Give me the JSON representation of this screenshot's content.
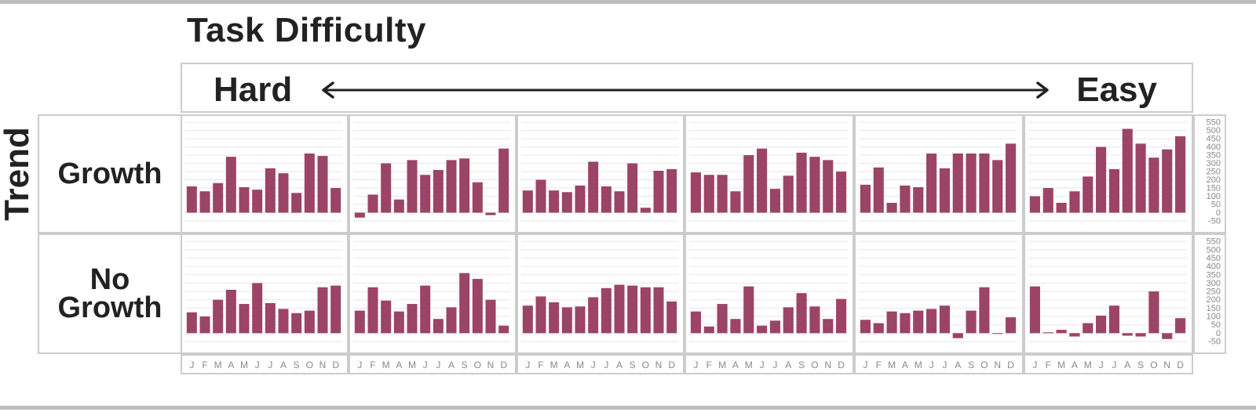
{
  "title": "Task Difficulty",
  "y_title": "Trend",
  "difficulty": {
    "left_label": "Hard",
    "right_label": "Easy"
  },
  "rows": [
    {
      "label_lines": [
        "Growth"
      ]
    },
    {
      "label_lines": [
        "No",
        "Growth"
      ]
    }
  ],
  "colors": {
    "bar": "#9c4466",
    "border": "#cccccc",
    "grid": "#e6e6e6",
    "axis_text": "#888888"
  },
  "chart_data": {
    "type": "bar",
    "categories": [
      "J",
      "F",
      "M",
      "A",
      "M",
      "J",
      "J",
      "A",
      "S",
      "O",
      "N",
      "D"
    ],
    "y_ticks": [
      -50,
      0,
      50,
      100,
      150,
      200,
      250,
      300,
      350,
      400,
      450,
      500,
      550
    ],
    "ylim": [
      -50,
      560
    ],
    "grid": true,
    "panels": [
      [
        {
          "values": [
            160,
            130,
            180,
            340,
            155,
            140,
            270,
            240,
            120,
            360,
            345,
            150
          ]
        },
        {
          "values": [
            -30,
            110,
            300,
            80,
            320,
            230,
            260,
            320,
            330,
            185,
            -15,
            390
          ]
        },
        {
          "values": [
            135,
            200,
            135,
            125,
            165,
            310,
            160,
            130,
            300,
            30,
            255,
            265
          ]
        },
        {
          "values": [
            245,
            230,
            230,
            130,
            350,
            390,
            145,
            225,
            365,
            340,
            320,
            250
          ]
        },
        {
          "values": [
            170,
            275,
            60,
            165,
            155,
            360,
            270,
            360,
            360,
            360,
            320,
            420
          ]
        },
        {
          "values": [
            100,
            150,
            60,
            130,
            220,
            400,
            265,
            510,
            420,
            335,
            385,
            465
          ]
        }
      ],
      [
        {
          "values": [
            125,
            100,
            200,
            260,
            175,
            300,
            180,
            145,
            120,
            135,
            275,
            285
          ]
        },
        {
          "values": [
            135,
            275,
            195,
            130,
            175,
            285,
            85,
            155,
            360,
            325,
            200,
            45
          ]
        },
        {
          "values": [
            165,
            220,
            185,
            155,
            160,
            215,
            270,
            290,
            285,
            275,
            275,
            190
          ]
        },
        {
          "values": [
            130,
            40,
            175,
            85,
            280,
            45,
            75,
            155,
            240,
            160,
            85,
            205
          ]
        },
        {
          "values": [
            80,
            60,
            130,
            120,
            135,
            145,
            165,
            -30,
            135,
            275,
            -5,
            95
          ]
        },
        {
          "values": [
            280,
            5,
            20,
            -20,
            60,
            105,
            165,
            -15,
            -20,
            250,
            -35,
            90
          ]
        }
      ]
    ]
  }
}
